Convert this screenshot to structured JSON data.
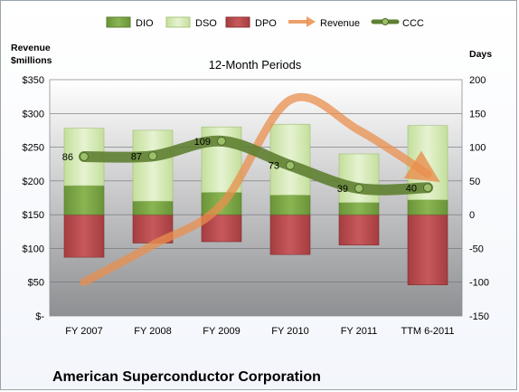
{
  "chart_data": {
    "type": "bar",
    "title": "12-Month Periods",
    "company": "American Superconductor Corporation",
    "left_axis_label": "Revenue\n$millions",
    "right_axis_label": "Days",
    "categories": [
      "FY 2007",
      "FY 2008",
      "FY 2009",
      "FY 2010",
      "FY 2011",
      "TTM 6-2011"
    ],
    "left_axis": {
      "min": 0,
      "max": 350,
      "step": 50,
      "tick_labels": [
        "$-",
        "$50",
        "$100",
        "$150",
        "$200",
        "$250",
        "$300",
        "$350"
      ]
    },
    "right_axis": {
      "min": -150,
      "max": 200,
      "step": 50,
      "tick_labels": [
        "-150",
        "-100",
        "-50",
        "0",
        "50",
        "100",
        "150",
        "200"
      ]
    },
    "series": [
      {
        "name": "DIO",
        "axis": "days",
        "kind": "stacked-bar",
        "color": "#77a043",
        "values": [
          43,
          20,
          33,
          29,
          18,
          22
        ]
      },
      {
        "name": "DSO",
        "axis": "days",
        "kind": "stacked-bar",
        "color": "#d3eab2",
        "values": [
          85,
          105,
          97,
          105,
          72,
          110
        ]
      },
      {
        "name": "DPO",
        "axis": "days",
        "kind": "negative-bar",
        "color": "#b54a4d",
        "values": [
          -63,
          -42,
          -40,
          -59,
          -45,
          -104
        ]
      },
      {
        "name": "Revenue",
        "axis": "revenue",
        "kind": "line",
        "color": "#e98f4d",
        "values": [
          50,
          105,
          165,
          320,
          275,
          210
        ]
      },
      {
        "name": "CCC",
        "axis": "days",
        "kind": "line",
        "color": "#5f7f32",
        "values": [
          86,
          87,
          109,
          73,
          39,
          40
        ]
      }
    ],
    "ccc_labels": [
      "86",
      "87",
      "109",
      "73",
      "39",
      "40"
    ],
    "grid": true,
    "legend_position": "top"
  }
}
